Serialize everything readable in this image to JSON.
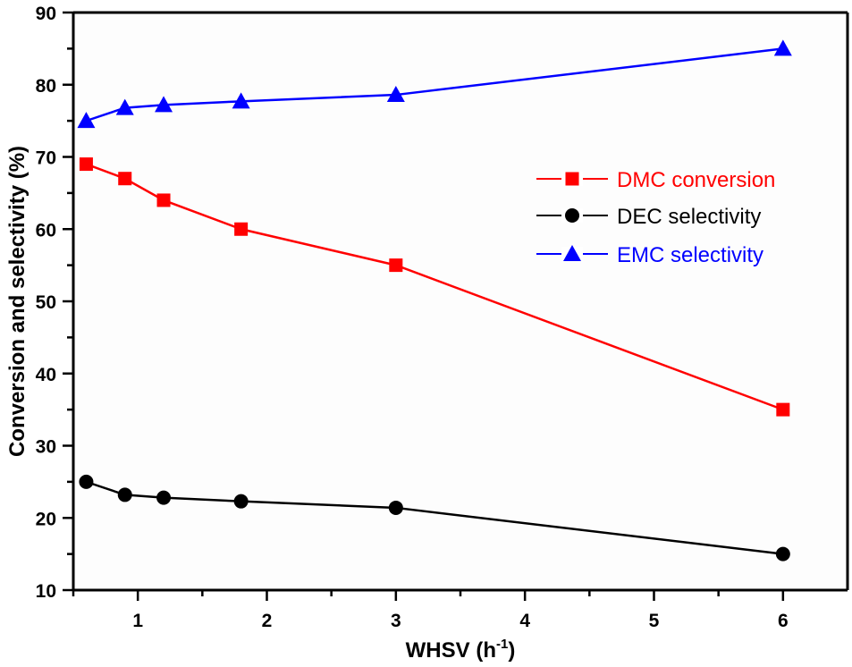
{
  "chart_data": {
    "type": "line",
    "title": "",
    "xlabel": "WHSV (h",
    "xlabel_sup": "-1",
    "xlabel_close": ")",
    "ylabel": "Conversion and selectivity (%)",
    "xlim": [
      0.5,
      6.5
    ],
    "ylim": [
      10,
      90
    ],
    "xticks": [
      1,
      2,
      3,
      4,
      5,
      6
    ],
    "xticks_minor": [
      1.5,
      2.5,
      3.5,
      4.5,
      5.5
    ],
    "yticks": [
      10,
      20,
      30,
      40,
      50,
      60,
      70,
      80,
      90
    ],
    "yticks_minor": [
      15,
      25,
      35,
      45,
      55,
      65,
      75,
      85
    ],
    "grid": false,
    "legend_position": "right-upper",
    "x": [
      0.6,
      0.9,
      1.2,
      1.8,
      3,
      6
    ],
    "series": [
      {
        "name": "DMC conversion",
        "color": "#ff0000",
        "marker": "square",
        "values": [
          69,
          67,
          64,
          60,
          55,
          35
        ]
      },
      {
        "name": "DEC selectivity",
        "color": "#000000",
        "marker": "circle",
        "values": [
          25,
          23.2,
          22.8,
          22.3,
          21.4,
          15
        ]
      },
      {
        "name": "EMC selectivity",
        "color": "#0000ff",
        "marker": "triangle",
        "values": [
          75,
          76.8,
          77.2,
          77.7,
          78.6,
          85
        ]
      }
    ]
  }
}
